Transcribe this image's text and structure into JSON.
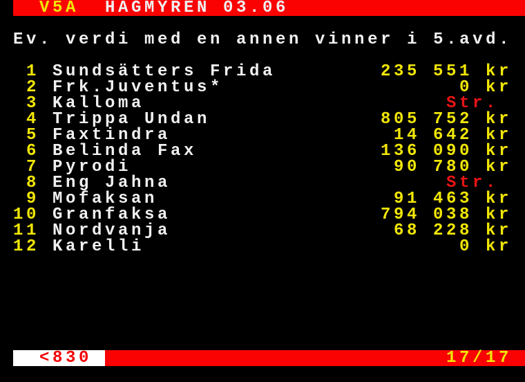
{
  "header": {
    "page_label": "V5A",
    "title": "HAGMYREN 03.06"
  },
  "subtitle": "Ev. verdi med en annen vinner i 5.avd.",
  "table": {
    "rows": [
      {
        "num": "1",
        "name": "Sundsätters Frida",
        "value": "235 551",
        "unit": "kr"
      },
      {
        "num": "2",
        "name": "Frk.Juventus*",
        "value": "0",
        "unit": "kr"
      },
      {
        "num": "3",
        "name": "Kalloma",
        "status": "Str."
      },
      {
        "num": "4",
        "name": "Trippa Undan",
        "value": "805 752",
        "unit": "kr"
      },
      {
        "num": "5",
        "name": "Faxtindra",
        "value": "14 642",
        "unit": "kr"
      },
      {
        "num": "6",
        "name": "Belinda Fax",
        "value": "136 090",
        "unit": "kr"
      },
      {
        "num": "7",
        "name": "Pyrodi",
        "value": "90 780",
        "unit": "kr"
      },
      {
        "num": "8",
        "name": "Eng Jahna",
        "status": "Str."
      },
      {
        "num": "9",
        "name": "Mofaksan",
        "value": "91 463",
        "unit": "kr"
      },
      {
        "num": "10",
        "name": "Granfaksa",
        "value": "794 038",
        "unit": "kr"
      },
      {
        "num": "11",
        "name": "Nordvanja",
        "value": "68 228",
        "unit": "kr"
      },
      {
        "num": "12",
        "name": "Karelli",
        "value": "0",
        "unit": "kr"
      }
    ]
  },
  "footer": {
    "page_link": "<830",
    "page_indicator": "17/17"
  },
  "colors": {
    "background": "#000000",
    "bar": "#fa0202",
    "yellow": "#f1e606",
    "white": "#f0f0f0",
    "box": "#ffffff",
    "struck": "#e81414",
    "link": "#f20202"
  }
}
